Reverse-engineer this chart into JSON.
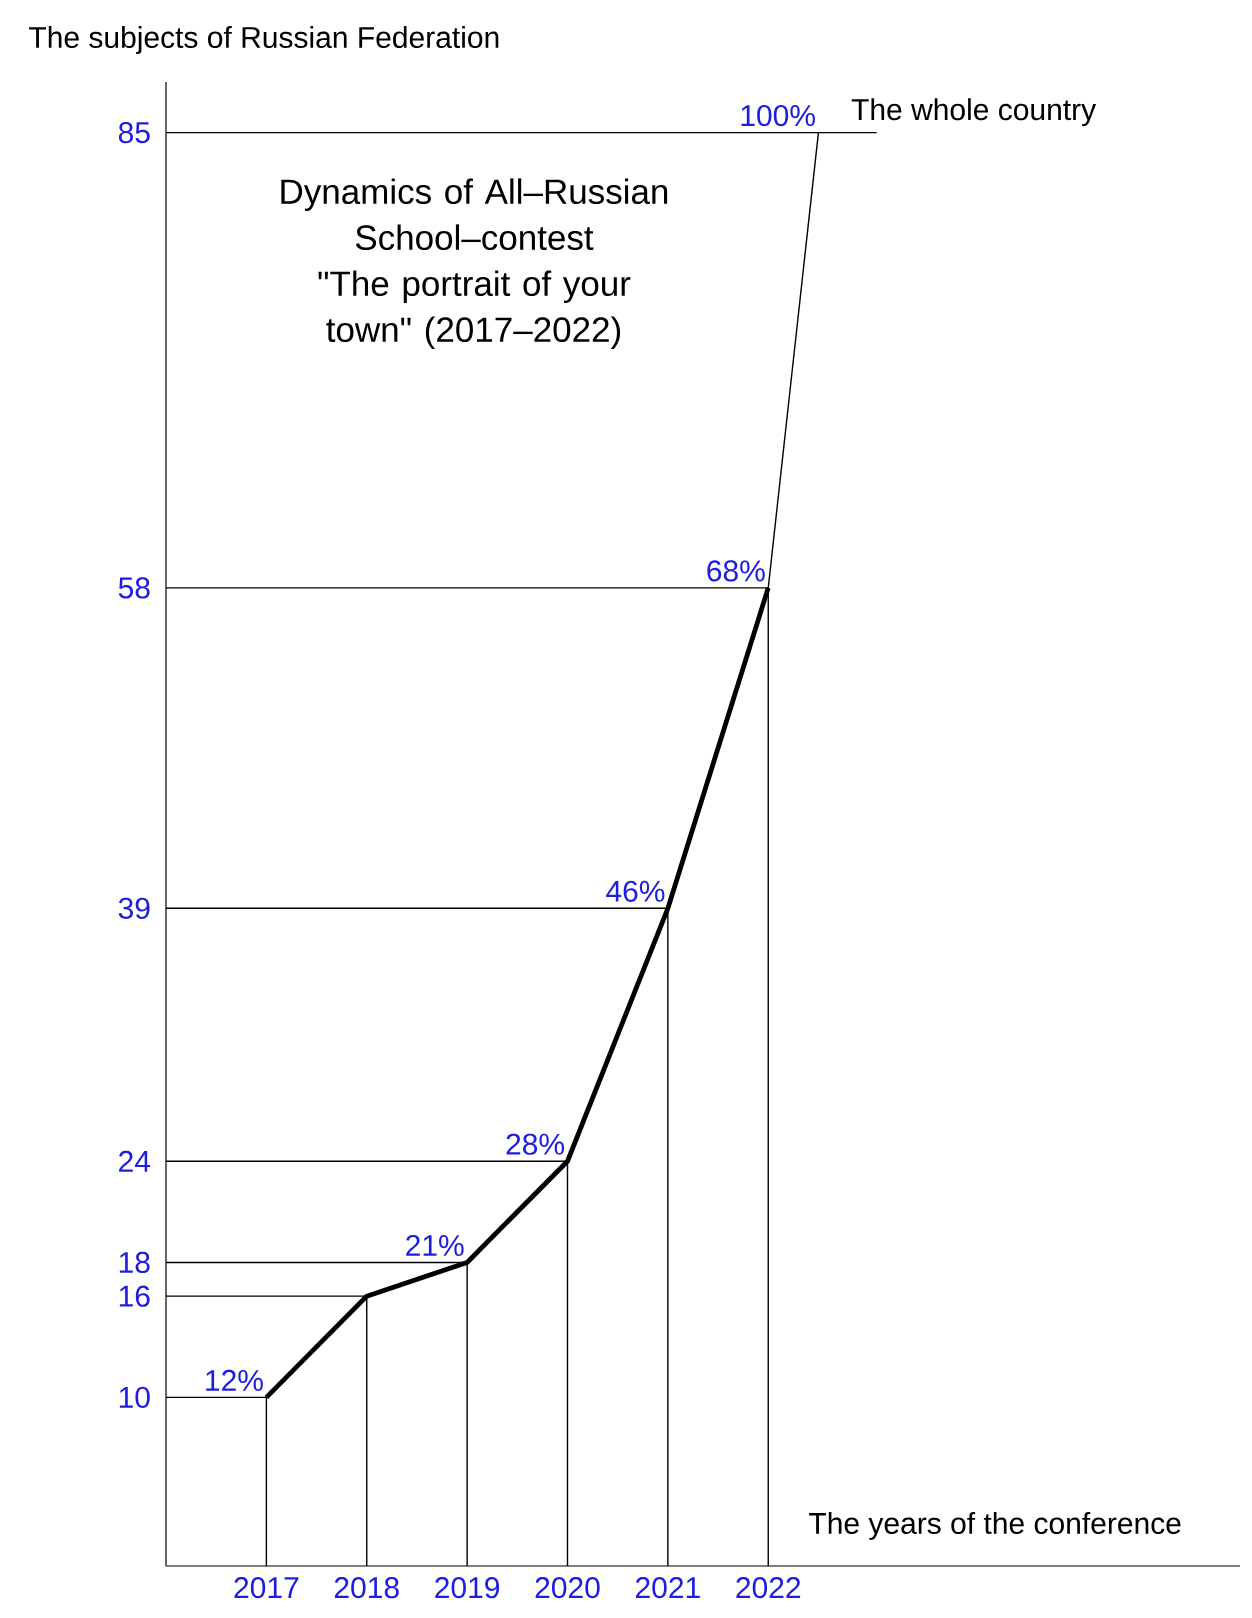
{
  "chart_data": {
    "type": "line",
    "title": "Dynamics of All–Russian School–contest",
    "subtitle": "\"The portrait of your town\" (2017–2022)",
    "xlabel": "The years of the conference",
    "ylabel": "The subjects of Russian Federation",
    "x": [
      2017,
      2018,
      2019,
      2020,
      2021,
      2022
    ],
    "series": [
      {
        "color": "#000000",
        "values": [
          10,
          16,
          18,
          24,
          39,
          58
        ]
      },
      {
        "color": "#000000",
        "x": [
          2022,
          2022.5
        ],
        "values": [
          58,
          85
        ]
      },
      {
        "color": "#000000",
        "x": [
          2016,
          2017,
          2017
        ],
        "values": [
          10,
          10,
          0
        ]
      },
      {
        "color": "#000000",
        "x": [
          2016,
          2018,
          2018
        ],
        "values": [
          16,
          16,
          0
        ]
      },
      {
        "color": "#000000",
        "x": [
          2016,
          2019,
          2019
        ],
        "values": [
          18,
          18,
          0
        ]
      },
      {
        "color": "#000000",
        "x": [
          2016,
          2020,
          2020
        ],
        "values": [
          24,
          24,
          0
        ]
      },
      {
        "color": "#000000",
        "x": [
          2016,
          2021,
          2021
        ],
        "values": [
          39,
          39,
          0
        ]
      },
      {
        "color": "#000000",
        "x": [
          2016,
          2022,
          2022
        ],
        "values": [
          58,
          58,
          0
        ]
      }
    ],
    "annotations": [
      {
        "text": "12%",
        "x": 2017,
        "y": 10
      },
      {
        "text": "21%",
        "x": 2019,
        "y": 18
      },
      {
        "text": "28%",
        "x": 2020,
        "y": 24
      },
      {
        "text": "46%",
        "x": 2021,
        "y": 39
      },
      {
        "text": "68%",
        "x": 2022,
        "y": 58
      },
      {
        "text": "100%",
        "x": 2022.5,
        "y": 85
      }
    ],
    "ref_lines": [
      {
        "axis": "y",
        "value": 85,
        "label": "The whole country"
      }
    ],
    "xlim": [
      2016,
      2026.7
    ],
    "ylim": [
      0,
      88
    ],
    "xticks": [
      2017,
      2018,
      2019,
      2020,
      2021,
      2022
    ],
    "yticks": [
      10,
      16,
      18,
      24,
      39,
      58,
      85
    ]
  }
}
